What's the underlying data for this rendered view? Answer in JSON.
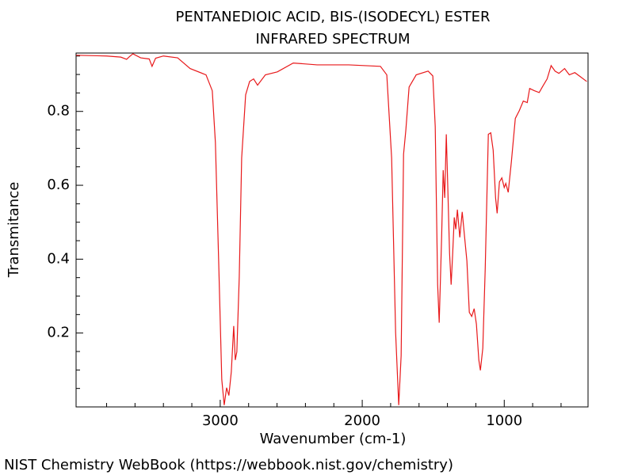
{
  "chart_data": {
    "type": "line",
    "title": "PENTANEDIOIC ACID, BIS-(ISODECYL) ESTER",
    "subtitle": "INFRARED SPECTRUM",
    "xlabel": "Wavenumber (cm-1)",
    "ylabel": "Transmitance",
    "footer": "NIST Chemistry WebBook (https://webbook.nist.gov/chemistry)",
    "color": "#e8191b",
    "xlim": [
      4015,
      410
    ],
    "ylim": [
      0.0,
      0.958
    ],
    "xticks": [
      3000,
      2000,
      1000
    ],
    "yticks": [
      0.2,
      0.4,
      0.6,
      0.8
    ],
    "minor_xticks": [
      3800,
      3600,
      3400,
      3200,
      2800,
      2600,
      2400,
      2200,
      1800,
      1600,
      1400,
      1200,
      800,
      600
    ],
    "minor_yticks": [
      0.05,
      0.1,
      0.15,
      0.25,
      0.3,
      0.35,
      0.45,
      0.5,
      0.55,
      0.65,
      0.7,
      0.75,
      0.85,
      0.9,
      0.95
    ],
    "x": [
      4015,
      3800,
      3700,
      3659,
      3640,
      3615,
      3560,
      3500,
      3480,
      3455,
      3400,
      3300,
      3212,
      3100,
      3056,
      3034,
      3011,
      2989,
      2972,
      2955,
      2939,
      2922,
      2905,
      2894,
      2883,
      2866,
      2849,
      2821,
      2793,
      2765,
      2737,
      2682,
      2598,
      2486,
      2318,
      2095,
      1872,
      1827,
      1793,
      1765,
      1743,
      1726,
      1709,
      1693,
      1670,
      1620,
      1536,
      1503,
      1486,
      1469,
      1458,
      1441,
      1430,
      1419,
      1408,
      1397,
      1385,
      1374,
      1363,
      1352,
      1341,
      1330,
      1313,
      1296,
      1279,
      1263,
      1246,
      1229,
      1212,
      1196,
      1179,
      1168,
      1151,
      1134,
      1112,
      1095,
      1078,
      1061,
      1050,
      1034,
      1017,
      1000,
      989,
      972,
      950,
      922,
      894,
      866,
      838,
      821,
      788,
      754,
      732,
      698,
      670,
      642,
      615,
      575,
      542,
      503,
      464,
      419
    ],
    "values": [
      0.952,
      0.95,
      0.947,
      0.941,
      0.948,
      0.956,
      0.945,
      0.942,
      0.922,
      0.944,
      0.95,
      0.945,
      0.916,
      0.899,
      0.856,
      0.716,
      0.395,
      0.074,
      0.005,
      0.052,
      0.031,
      0.095,
      0.219,
      0.127,
      0.149,
      0.352,
      0.674,
      0.845,
      0.881,
      0.888,
      0.871,
      0.899,
      0.907,
      0.931,
      0.926,
      0.926,
      0.922,
      0.899,
      0.674,
      0.202,
      0.005,
      0.139,
      0.684,
      0.749,
      0.866,
      0.899,
      0.909,
      0.896,
      0.759,
      0.331,
      0.228,
      0.459,
      0.641,
      0.566,
      0.738,
      0.587,
      0.416,
      0.331,
      0.416,
      0.513,
      0.481,
      0.534,
      0.459,
      0.528,
      0.459,
      0.395,
      0.256,
      0.245,
      0.266,
      0.224,
      0.127,
      0.099,
      0.159,
      0.374,
      0.738,
      0.742,
      0.695,
      0.566,
      0.524,
      0.609,
      0.62,
      0.594,
      0.605,
      0.581,
      0.663,
      0.781,
      0.802,
      0.828,
      0.824,
      0.862,
      0.856,
      0.851,
      0.866,
      0.888,
      0.924,
      0.909,
      0.903,
      0.916,
      0.899,
      0.905,
      0.894,
      0.881
    ]
  }
}
